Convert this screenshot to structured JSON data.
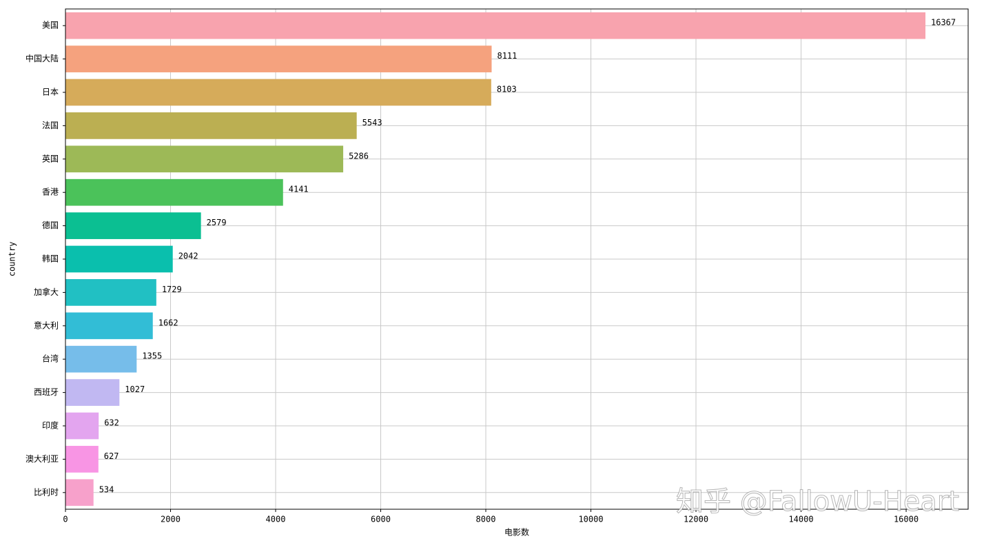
{
  "chart_data": {
    "type": "barh",
    "categories": [
      "美国",
      "中国大陆",
      "日本",
      "法国",
      "英国",
      "香港",
      "德国",
      "韩国",
      "加拿大",
      "意大利",
      "台湾",
      "西班牙",
      "印度",
      "澳大利亚",
      "比利时"
    ],
    "values": [
      16367,
      8111,
      8103,
      5543,
      5286,
      4141,
      2579,
      2042,
      1729,
      1662,
      1355,
      1027,
      632,
      627,
      534
    ],
    "colors": [
      "#f8a3ae",
      "#f5a27e",
      "#d6ab5a",
      "#bbaf52",
      "#9db957",
      "#4bc25a",
      "#0bbf92",
      "#0abfad",
      "#21c0c3",
      "#32bdd6",
      "#76bdea",
      "#c1b8f2",
      "#e3a5ef",
      "#f895e4",
      "#f7a1cb"
    ],
    "xlim": [
      0,
      17180
    ],
    "xticks": [
      0,
      2000,
      4000,
      6000,
      8000,
      10000,
      12000,
      14000,
      16000
    ],
    "x_label": "电影数",
    "y_label": "country",
    "grid": true,
    "watermark": "知乎 @FallowU-Heart"
  }
}
